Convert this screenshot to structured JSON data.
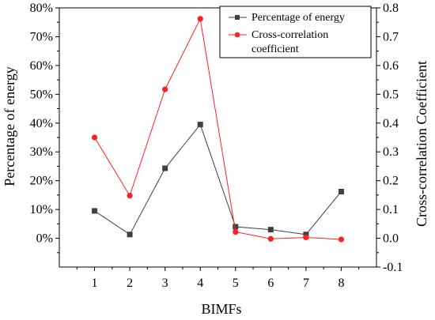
{
  "chart_data": {
    "type": "line",
    "x": [
      1,
      2,
      3,
      4,
      5,
      6,
      7,
      8
    ],
    "xlabel": "BIMFs",
    "ylabel_left": "Percentage of energy",
    "ylabel_right": "Cross-correlation Coefficient",
    "xlim": [
      0,
      9
    ],
    "ylim_left": [
      -0.1,
      0.8
    ],
    "ylim_right": [
      -0.1,
      0.8
    ],
    "x_ticks": [
      "1",
      "2",
      "3",
      "4",
      "5",
      "6",
      "7",
      "8"
    ],
    "left_ticks": [
      {
        "value": 0.0,
        "label": "0%"
      },
      {
        "value": 0.1,
        "label": "10%"
      },
      {
        "value": 0.2,
        "label": "20%"
      },
      {
        "value": 0.3,
        "label": "30%"
      },
      {
        "value": 0.4,
        "label": "40%"
      },
      {
        "value": 0.5,
        "label": "50%"
      },
      {
        "value": 0.6,
        "label": "60%"
      },
      {
        "value": 0.7,
        "label": "70%"
      },
      {
        "value": 0.8,
        "label": "80%"
      }
    ],
    "right_ticks": [
      {
        "value": -0.1,
        "label": "-0.1"
      },
      {
        "value": 0.0,
        "label": "0.0"
      },
      {
        "value": 0.1,
        "label": "0.1"
      },
      {
        "value": 0.2,
        "label": "0.2"
      },
      {
        "value": 0.3,
        "label": "0.3"
      },
      {
        "value": 0.4,
        "label": "0.4"
      },
      {
        "value": 0.5,
        "label": "0.5"
      },
      {
        "value": 0.6,
        "label": "0.6"
      },
      {
        "value": 0.7,
        "label": "0.7"
      },
      {
        "value": 0.8,
        "label": "0.8"
      }
    ],
    "grid": false,
    "legend_position": "top-right",
    "series": [
      {
        "name": "Percentage of energy",
        "axis": "left",
        "color": "#404040",
        "marker": "square",
        "values": [
          0.095,
          0.013,
          0.243,
          0.395,
          0.04,
          0.03,
          0.013,
          0.162
        ]
      },
      {
        "name": "Cross-correlation coefficient",
        "legend_lines": [
          "Cross-correlation",
          "coefficient"
        ],
        "axis": "right",
        "color": "#ff1f1f",
        "marker": "circle",
        "values": [
          0.35,
          0.148,
          0.517,
          0.762,
          0.022,
          -0.002,
          0.003,
          -0.004
        ]
      }
    ]
  }
}
